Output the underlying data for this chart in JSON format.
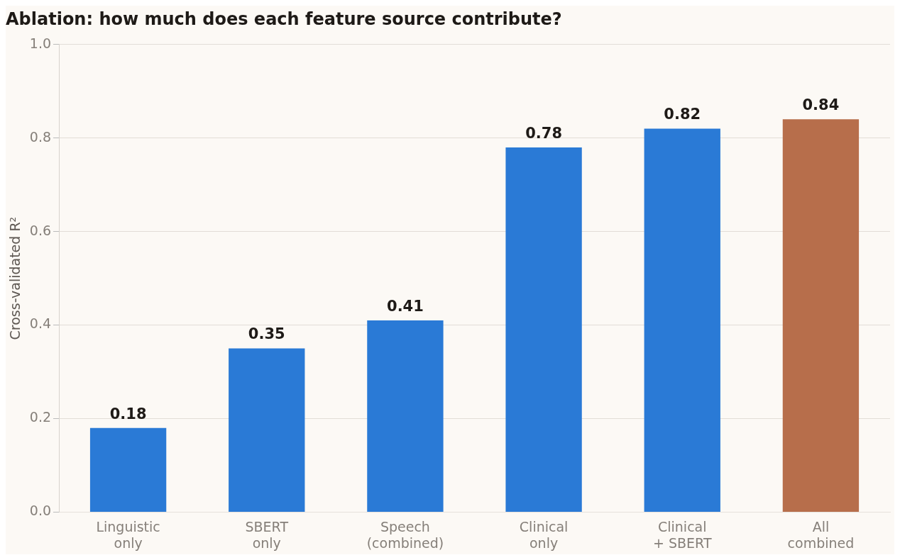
{
  "chart_data": {
    "type": "bar",
    "title": "Ablation: how much does each feature source contribute?",
    "ylabel": "Cross-validated R²",
    "categories": [
      "Linguistic\nonly",
      "SBERT\nonly",
      "Speech\n(combined)",
      "Clinical\nonly",
      "Clinical\n+ SBERT",
      "All\ncombined"
    ],
    "values": [
      0.18,
      0.35,
      0.41,
      0.78,
      0.82,
      0.84
    ],
    "colors": [
      "#2a7ad6",
      "#2a7ad6",
      "#2a7ad6",
      "#2a7ad6",
      "#2a7ad6",
      "#b76e4b"
    ],
    "ylim": [
      0,
      1
    ],
    "yticks": [
      {
        "value": 0,
        "label": "0.0"
      },
      0.2,
      0.4,
      0.6,
      0.8,
      {
        "value": 1,
        "label": "1.0"
      }
    ],
    "grid": "y",
    "data_labels": true,
    "legend": false
  }
}
